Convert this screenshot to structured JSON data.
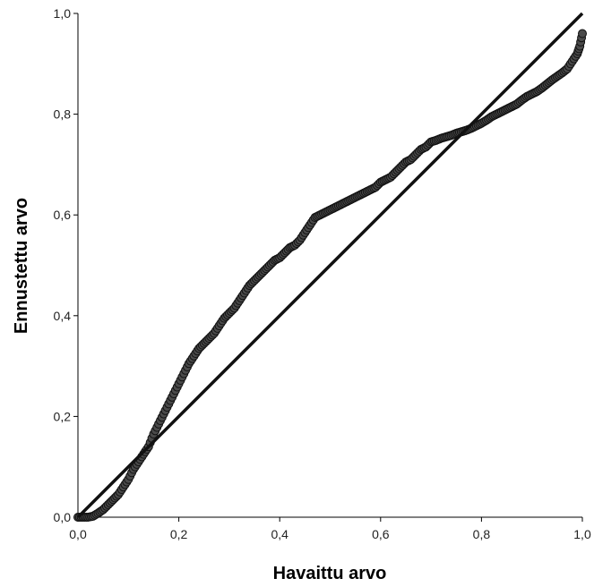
{
  "chart_data": {
    "type": "scatter",
    "title": "",
    "xlabel": "Havaittu arvo",
    "ylabel": "Ennustettu arvo",
    "xlim": [
      0,
      1
    ],
    "ylim": [
      0,
      1
    ],
    "x_ticks": [
      "0,0",
      "0,2",
      "0,4",
      "0,6",
      "0,8",
      "1,0"
    ],
    "y_ticks": [
      "0,0",
      "0,2",
      "0,4",
      "0,6",
      "0,8",
      "1,0"
    ],
    "grid": false,
    "reference_line": {
      "from": [
        0,
        0
      ],
      "to": [
        1,
        1
      ]
    },
    "series": [
      {
        "marker": "circle",
        "color": "#3a3a3a",
        "x": [
          0.0,
          0.01,
          0.02,
          0.03,
          0.04,
          0.05,
          0.06,
          0.07,
          0.08,
          0.09,
          0.1,
          0.11,
          0.12,
          0.13,
          0.14,
          0.15,
          0.16,
          0.17,
          0.18,
          0.19,
          0.2,
          0.21,
          0.22,
          0.23,
          0.24,
          0.25,
          0.26,
          0.27,
          0.28,
          0.29,
          0.3,
          0.31,
          0.32,
          0.33,
          0.34,
          0.35,
          0.36,
          0.37,
          0.38,
          0.39,
          0.4,
          0.41,
          0.42,
          0.43,
          0.44,
          0.45,
          0.46,
          0.47,
          0.48,
          0.49,
          0.5,
          0.51,
          0.52,
          0.53,
          0.54,
          0.55,
          0.56,
          0.57,
          0.58,
          0.59,
          0.6,
          0.61,
          0.62,
          0.63,
          0.64,
          0.65,
          0.66,
          0.67,
          0.68,
          0.69,
          0.7,
          0.71,
          0.72,
          0.73,
          0.74,
          0.75,
          0.76,
          0.77,
          0.78,
          0.79,
          0.8,
          0.81,
          0.82,
          0.83,
          0.84,
          0.85,
          0.86,
          0.87,
          0.88,
          0.89,
          0.9,
          0.91,
          0.92,
          0.93,
          0.94,
          0.95,
          0.96,
          0.97,
          0.98,
          0.99,
          0.995,
          1.0
        ],
        "y": [
          0.0,
          0.0,
          0.0,
          0.002,
          0.008,
          0.015,
          0.025,
          0.035,
          0.045,
          0.06,
          0.075,
          0.095,
          0.11,
          0.125,
          0.14,
          0.165,
          0.185,
          0.205,
          0.225,
          0.245,
          0.265,
          0.285,
          0.305,
          0.32,
          0.335,
          0.345,
          0.355,
          0.365,
          0.38,
          0.395,
          0.405,
          0.415,
          0.43,
          0.445,
          0.46,
          0.47,
          0.48,
          0.49,
          0.5,
          0.51,
          0.515,
          0.525,
          0.535,
          0.54,
          0.55,
          0.565,
          0.58,
          0.595,
          0.6,
          0.605,
          0.61,
          0.615,
          0.62,
          0.625,
          0.63,
          0.635,
          0.64,
          0.645,
          0.65,
          0.655,
          0.665,
          0.67,
          0.675,
          0.685,
          0.695,
          0.705,
          0.71,
          0.72,
          0.73,
          0.735,
          0.745,
          0.748,
          0.752,
          0.755,
          0.758,
          0.762,
          0.765,
          0.768,
          0.772,
          0.777,
          0.782,
          0.788,
          0.795,
          0.8,
          0.805,
          0.81,
          0.815,
          0.82,
          0.828,
          0.835,
          0.84,
          0.845,
          0.852,
          0.86,
          0.868,
          0.875,
          0.882,
          0.89,
          0.905,
          0.92,
          0.935,
          0.96
        ]
      }
    ]
  }
}
